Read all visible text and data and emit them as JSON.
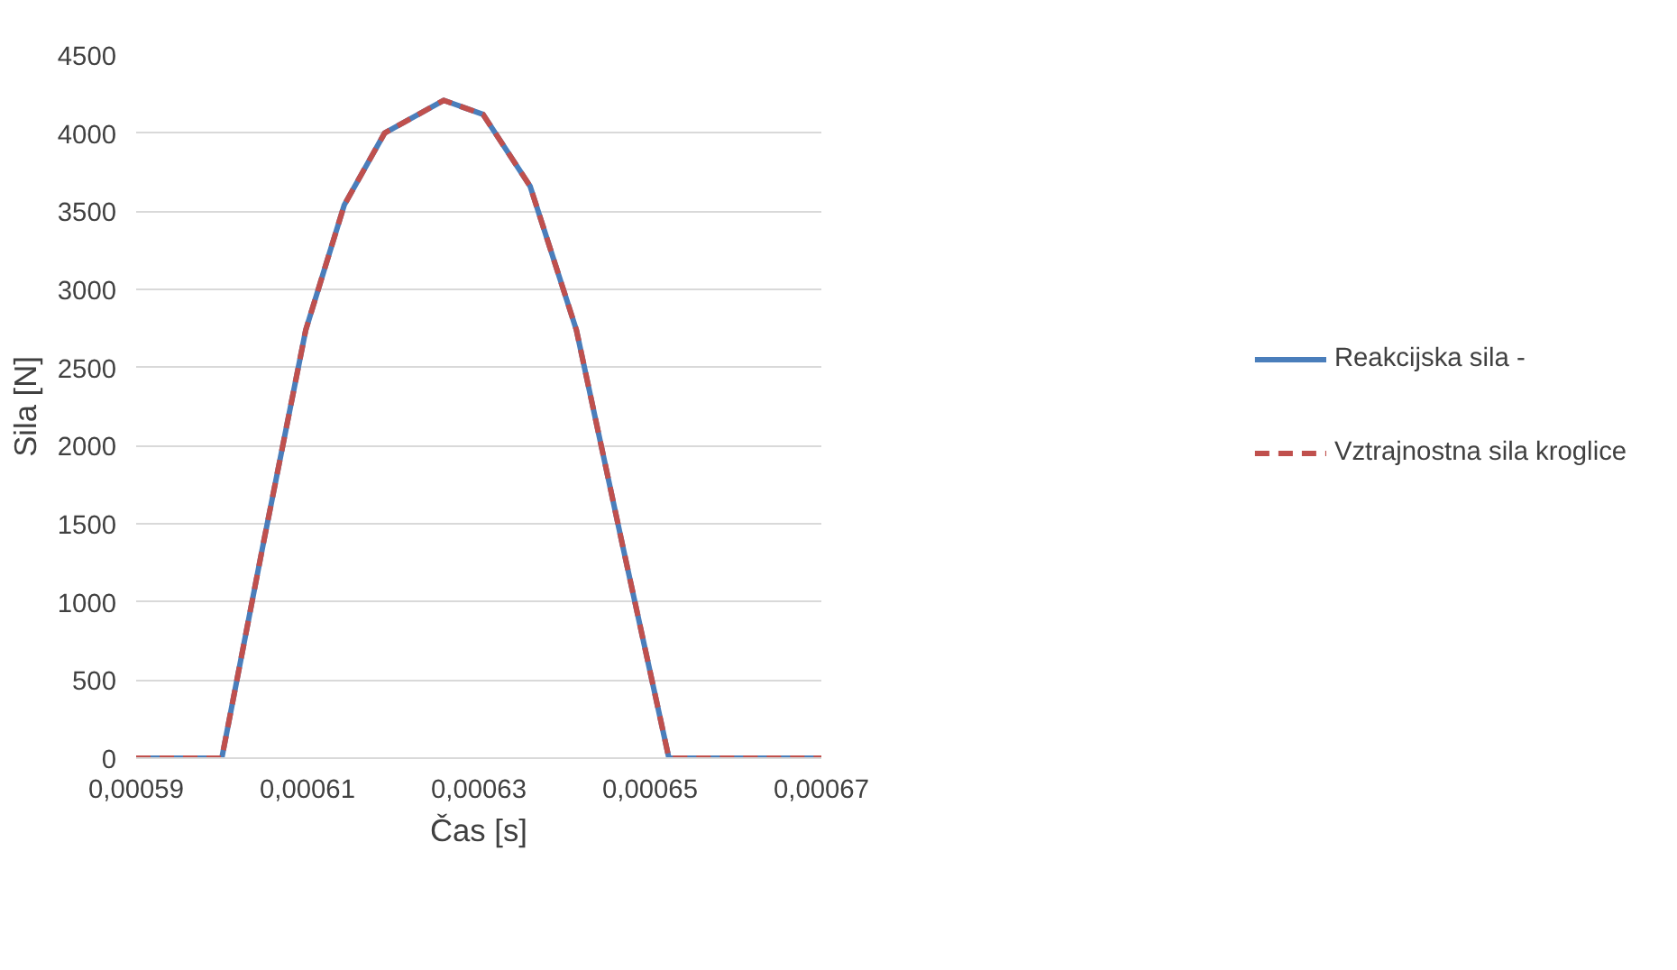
{
  "chart_data": {
    "type": "line",
    "xlabel": "Čas [s]",
    "ylabel": "Sila [N]",
    "x": [
      0.00059,
      0.0006,
      0.0006048,
      0.0006098,
      0.0006143,
      0.000619,
      0.0006259,
      0.0006305,
      0.000636,
      0.0006414,
      0.0006468,
      0.0006522,
      0.00067
    ],
    "series": [
      {
        "name": "Reakcijska sila -",
        "color": "#4a7ebb",
        "line_style": "solid",
        "values": [
          0,
          0,
          1360,
          2740,
          3540,
          4000,
          4210,
          4120,
          3660,
          2740,
          1360,
          0,
          0
        ]
      },
      {
        "name": "Vztrajnostna sila kroglice",
        "color": "#c0504d",
        "line_style": "dashed",
        "values": [
          0,
          0,
          1360,
          2740,
          3540,
          4000,
          4210,
          4120,
          3660,
          2740,
          1360,
          0,
          0
        ]
      }
    ],
    "xlim": [
      0.00059,
      0.00067
    ],
    "xticks": [
      {
        "value": 0.00059,
        "label": "0,00059"
      },
      {
        "value": 0.00061,
        "label": "0,00061"
      },
      {
        "value": 0.00063,
        "label": "0,00063"
      },
      {
        "value": 0.00065,
        "label": "0,00065"
      },
      {
        "value": 0.00067,
        "label": "0,00067"
      }
    ],
    "ylim": [
      0,
      4500
    ],
    "yticks": [
      0,
      500,
      1000,
      1500,
      2000,
      2500,
      3000,
      3500,
      4000,
      4500
    ],
    "grid": "y",
    "legend": "right",
    "marker": "none"
  }
}
